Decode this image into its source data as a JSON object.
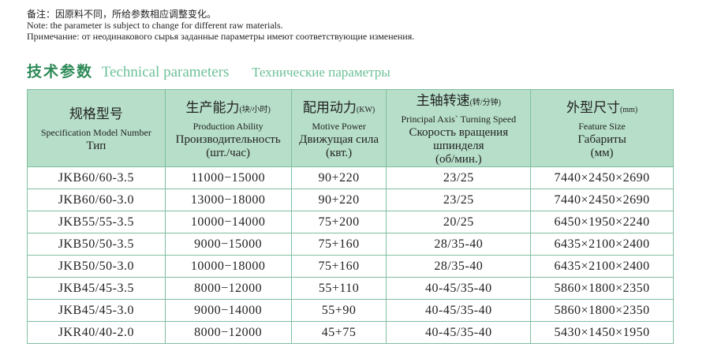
{
  "notes": {
    "zh": "备注：因原料不同，所给参数相应调整变化。",
    "en": "Note: the parameter is subject to change for different raw materials.",
    "ru": "Примечание: от неодинакового сырья заданные параметры имеют соответствующие изменения."
  },
  "title": {
    "zh": "技术参数",
    "en": "Technical parameters",
    "ru": "Технические параметры"
  },
  "columns": [
    {
      "zh": "规格型号",
      "unit": "",
      "en": "Specification Model Number",
      "ru": "Тип",
      "ru2": ""
    },
    {
      "zh": "生产能力",
      "unit": "(块/小时)",
      "en": "Production Ability",
      "ru": "Производительность",
      "ru2": "(шт./час)"
    },
    {
      "zh": "配用动力",
      "unit": "(KW)",
      "en": "Motive Power",
      "ru": "Движущая сила",
      "ru2": "(квт.)"
    },
    {
      "zh": "主轴转速",
      "unit": "(转/分钟)",
      "en": "Principal Axis` Turning Speed",
      "ru": "Скорость вращения шпинделя",
      "ru2": "(об/мин.)"
    },
    {
      "zh": "外型尺寸",
      "unit": "(mm)",
      "en": "Feature Size",
      "ru": "Габариты",
      "ru2": "(мм)"
    }
  ],
  "rows": [
    [
      "JKB60/60-3.5",
      "11000−15000",
      "90+220",
      "23/25",
      "7440×2450×2690"
    ],
    [
      "JKB60/60-3.0",
      "13000−18000",
      "90+220",
      "23/25",
      "7440×2450×2690"
    ],
    [
      "JKB55/55-3.5",
      "10000−14000",
      "75+200",
      "20/25",
      "6450×1950×2240"
    ],
    [
      "JKB50/50-3.5",
      "9000−15000",
      "75+160",
      "28/35-40",
      "6435×2100×2400"
    ],
    [
      "JKB50/50-3.0",
      "10000−18000",
      "75+160",
      "28/35-40",
      "6435×2100×2400"
    ],
    [
      "JKB45/45-3.5",
      "8000−12000",
      "55+110",
      "40-45/35-40",
      "5860×1800×2350"
    ],
    [
      "JKB45/45-3.0",
      "9000−14000",
      "55+90",
      "40-45/35-40",
      "5860×1800×2350"
    ],
    [
      "JKR40/40-2.0",
      "8000−12000",
      "45+75",
      "40-45/35-40",
      "5430×1450×1950"
    ]
  ],
  "colors": {
    "header_bg": "#b6dec8",
    "title_zh": "#2e8a58",
    "title_light": "#6cc097",
    "border": "#7fbfa0"
  }
}
